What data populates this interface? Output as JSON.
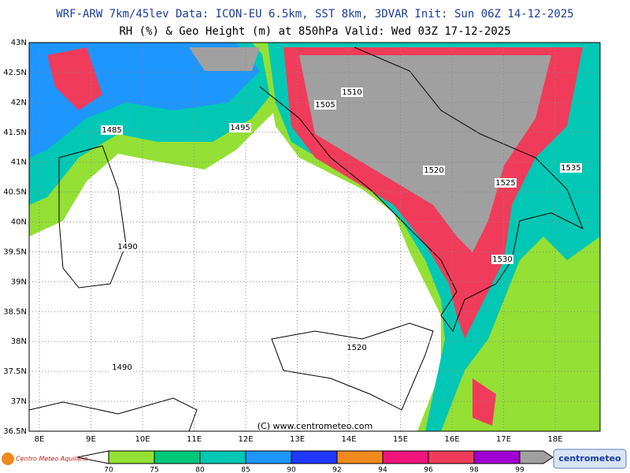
{
  "header": {
    "line1": "WRF-ARW 7km/45lev   Data: ICON-EU 6.5km, SST 8km, 3DVAR   Init: Sun 06Z 14-12-2025",
    "line2": "RH (%) & Geo Height (m) at 850hPa   Valid: Wed 03Z 17-12-2025"
  },
  "map": {
    "lat_labels": [
      "43N",
      "42.5N",
      "42N",
      "41.5N",
      "41N",
      "40.5N",
      "40N",
      "39.5N",
      "39N",
      "38.5N",
      "38N",
      "37.5N",
      "37N",
      "36.5N"
    ],
    "lon_labels": [
      "8E",
      "9E",
      "10E",
      "11E",
      "12E",
      "13E",
      "14E",
      "15E",
      "16E",
      "17E",
      "18E"
    ],
    "contour_labels": [
      "1485",
      "1495",
      "1505",
      "1510",
      "1520",
      "1525",
      "1535",
      "1490",
      "1530",
      "1520",
      "1490"
    ],
    "credit": "(C) www.centrometeo.com"
  },
  "legend": {
    "labels": [
      "70",
      "75",
      "80",
      "85",
      "90",
      "92",
      "94",
      "96",
      "98",
      "99"
    ],
    "colors": [
      "#94e034",
      "#00c87a",
      "#00c8b4",
      "#1e96ff",
      "#2038ff",
      "#f08a1e",
      "#f0147c",
      "#f03c5a",
      "#a000d2",
      "#a0a0a0"
    ]
  },
  "logos": {
    "left": "Centro Meteo Aquilano",
    "right": "centrometeo"
  }
}
